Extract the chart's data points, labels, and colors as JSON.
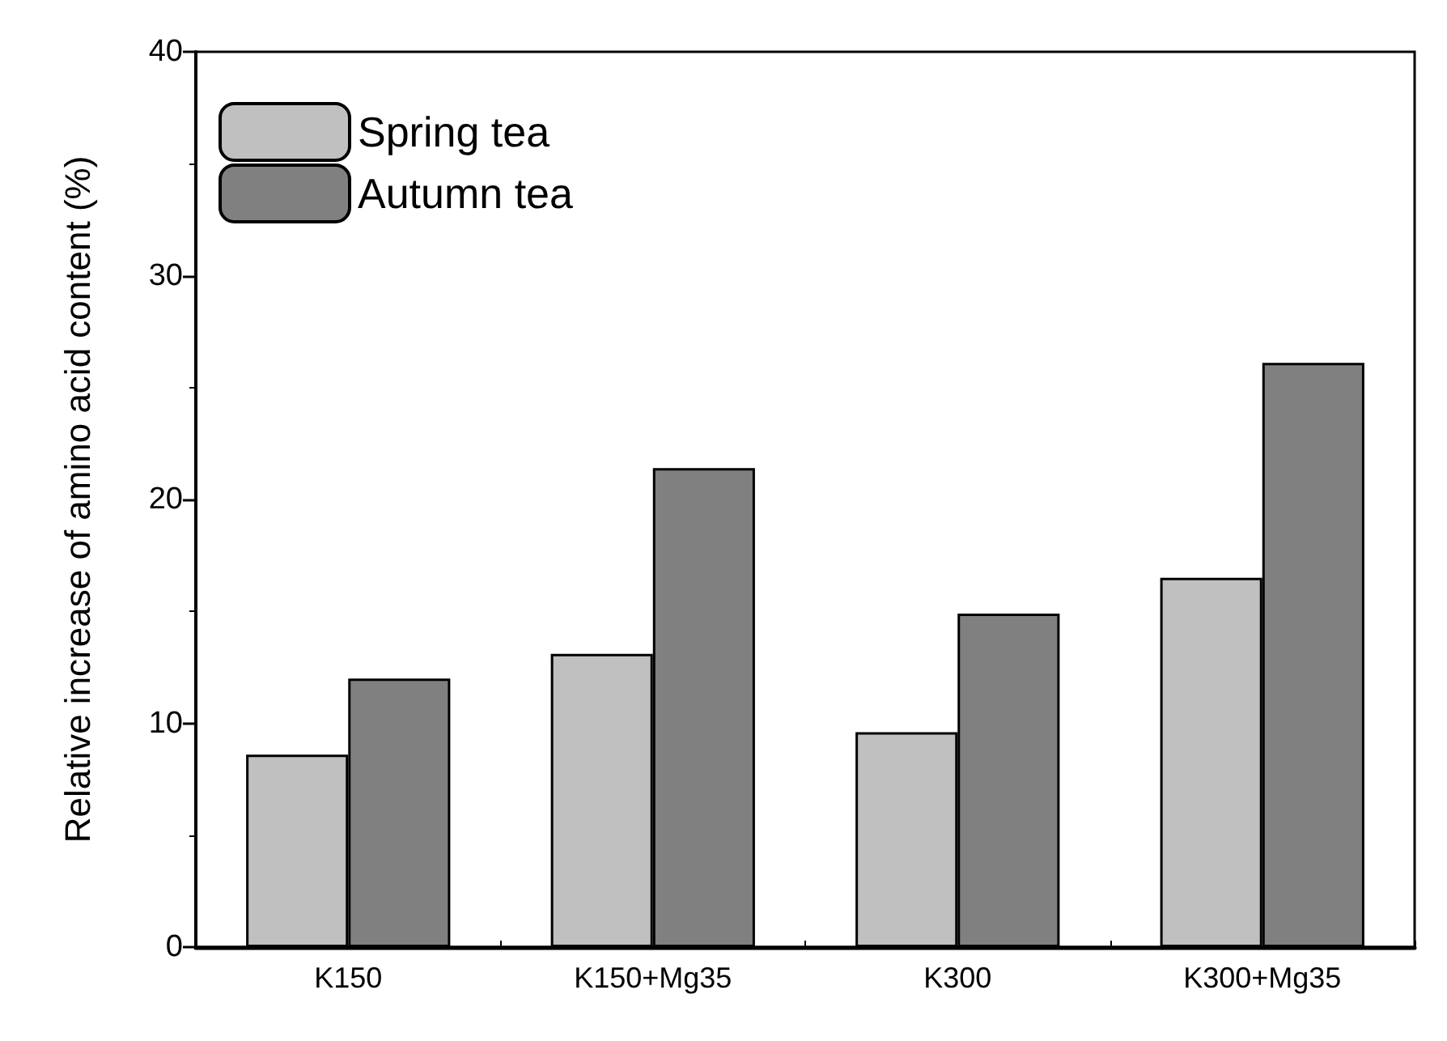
{
  "chart_data": {
    "type": "bar",
    "ylabel": "Relative increase of amino acid content (%)",
    "categories": [
      "K150",
      "K150+Mg35",
      "K300",
      "K300+Mg35"
    ],
    "series": [
      {
        "name": "Spring tea",
        "color": "#c0c0c0",
        "values": [
          8.6,
          13.1,
          9.6,
          16.5
        ]
      },
      {
        "name": "Autumn tea",
        "color": "#808080",
        "values": [
          12.0,
          21.4,
          14.9,
          26.1
        ]
      }
    ],
    "ylim": [
      0,
      40
    ],
    "yticks": [
      0,
      10,
      20,
      30,
      40
    ],
    "grid": false,
    "legend": "top left"
  }
}
